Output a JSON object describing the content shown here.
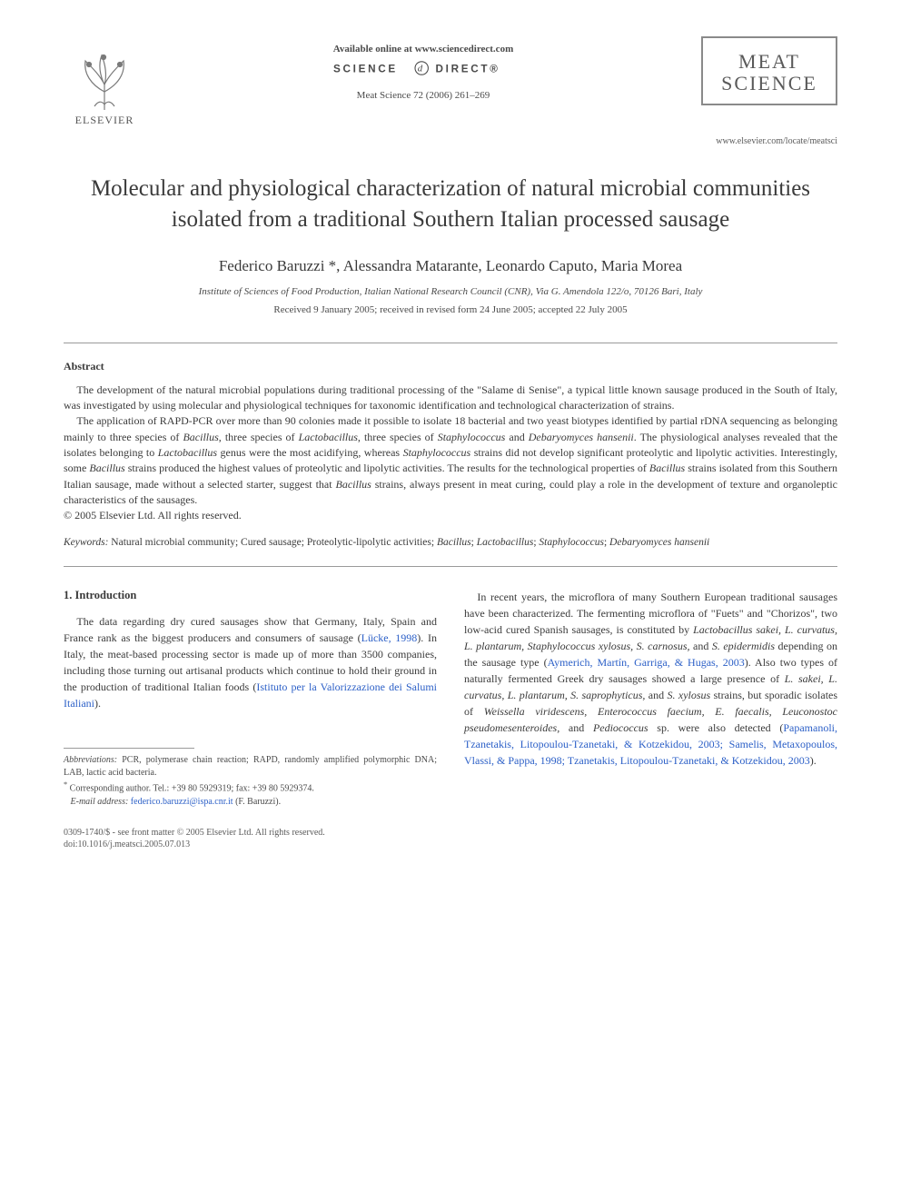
{
  "header": {
    "elsevier_label": "ELSEVIER",
    "available_online": "Available online at www.sciencedirect.com",
    "science_direct_prefix": "SCIENCE",
    "science_direct_suffix": "DIRECT",
    "journal_ref": "Meat Science 72 (2006) 261–269",
    "journal_box_line1": "MEAT",
    "journal_box_line2": "SCIENCE",
    "journal_url": "www.elsevier.com/locate/meatsci"
  },
  "title": "Molecular and physiological characterization of natural microbial communities isolated from a traditional Southern Italian processed sausage",
  "authors_html": "Federico Baruzzi *, Alessandra Matarante, Leonardo Caputo, Maria Morea",
  "affiliation": "Institute of Sciences of Food Production, Italian National Research Council (CNR), Via G. Amendola 122/o, 70126 Bari, Italy",
  "dates": "Received 9 January 2005; received in revised form 24 June 2005; accepted 22 July 2005",
  "abstract": {
    "heading": "Abstract",
    "para1": "The development of the natural microbial populations during traditional processing of the \"Salame di Senise\", a typical little known sausage produced in the South of Italy, was investigated by using molecular and physiological techniques for taxonomic identification and technological characterization of strains.",
    "para2_html": "The application of RAPD-PCR over more than 90 colonies made it possible to isolate 18 bacterial and two yeast biotypes identified by partial rDNA sequencing as belonging mainly to three species of <em>Bacillus</em>, three species of <em>Lactobacillus</em>, three species of <em>Staphylococcus</em> and <em>Debaryomyces hansenii</em>. The physiological analyses revealed that the isolates belonging to <em>Lactobacillus</em> genus were the most acidifying, whereas <em>Staphylococcus</em> strains did not develop significant proteolytic and lipolytic activities. Interestingly, some <em>Bacillus</em> strains produced the highest values of proteolytic and lipolytic activities. The results for the technological properties of <em>Bacillus</em> strains isolated from this Southern Italian sausage, made without a selected starter, suggest that <em>Bacillus</em> strains, always present in meat curing, could play a role in the development of texture and organoleptic characteristics of the sausages.",
    "copyright": "© 2005 Elsevier Ltd. All rights reserved."
  },
  "keywords": {
    "label": "Keywords:",
    "text_html": "Natural microbial community; Cured sausage; Proteolytic-lipolytic activities; <em>Bacillus</em>; <em>Lactobacillus</em>; <em>Staphylococcus</em>; <em>Debaryomyces hansenii</em>"
  },
  "intro": {
    "heading": "1. Introduction",
    "left_para_html": "The data regarding dry cured sausages show that Germany, Italy, Spain and France rank as the biggest producers and consumers of sausage (<span class=\"ref-link\">Lücke, 1998</span>). In Italy, the meat-based processing sector is made up of more than 3500 companies, including those turning out artisanal products which continue to hold their ground in the production of traditional Italian foods (<span class=\"ref-link\">Istituto per la Valorizzazione dei Salumi Italiani</span>).",
    "right_para_html": "In recent years, the microflora of many Southern European traditional sausages have been characterized. The fermenting microflora of \"Fuets\" and \"Chorizos\", two low-acid cured Spanish sausages, is constituted by <em>Lactobacillus sakei, L. curvatus, L. plantarum, Staphylococcus xylosus, S. carnosus,</em> and <em>S. epidermidis</em> depending on the sausage type (<span class=\"ref-link\">Aymerich, Martín, Garriga, &amp; Hugas, 2003</span>). Also two types of naturally fermented Greek dry sausages showed a large presence of <em>L. sakei, L. curvatus, L. plantarum, S. saprophyticus,</em> and <em>S. xylosus</em> strains, but sporadic isolates of <em>Weissella viridescens, Enterococcus faecium, E. faecalis, Leuconostoc pseudomesenteroides,</em> and <em>Pediococcus</em> sp. were also detected (<span class=\"ref-link\">Papamanoli, Tzanetakis, Litopoulou-Tzanetaki, &amp; Kotzekidou, 2003; Samelis, Metaxopoulos, Vlassi, &amp; Pappa, 1998; Tzanetakis, Litopoulou-Tzanetaki, &amp; Kotzekidou, 2003</span>)."
  },
  "footnotes": {
    "abbrev_label": "Abbreviations:",
    "abbrev_text": " PCR, polymerase chain reaction; RAPD, randomly amplified polymorphic DNA; LAB, lactic acid bacteria.",
    "corr_marker": "*",
    "corr_text": " Corresponding author. Tel.: +39 80 5929319; fax: +39 80 5929374.",
    "email_label": "E-mail address:",
    "email_value": " federico.baruzzi@ispa.cnr.it",
    "email_for": " (F. Baruzzi)."
  },
  "footer": {
    "line1": "0309-1740/$ - see front matter © 2005 Elsevier Ltd. All rights reserved.",
    "line2": "doi:10.1016/j.meatsci.2005.07.013"
  },
  "colors": {
    "text": "#3a3a3a",
    "link": "#2b5fc7",
    "rule": "#9a9a9a",
    "box_border": "#8a8a8a"
  }
}
